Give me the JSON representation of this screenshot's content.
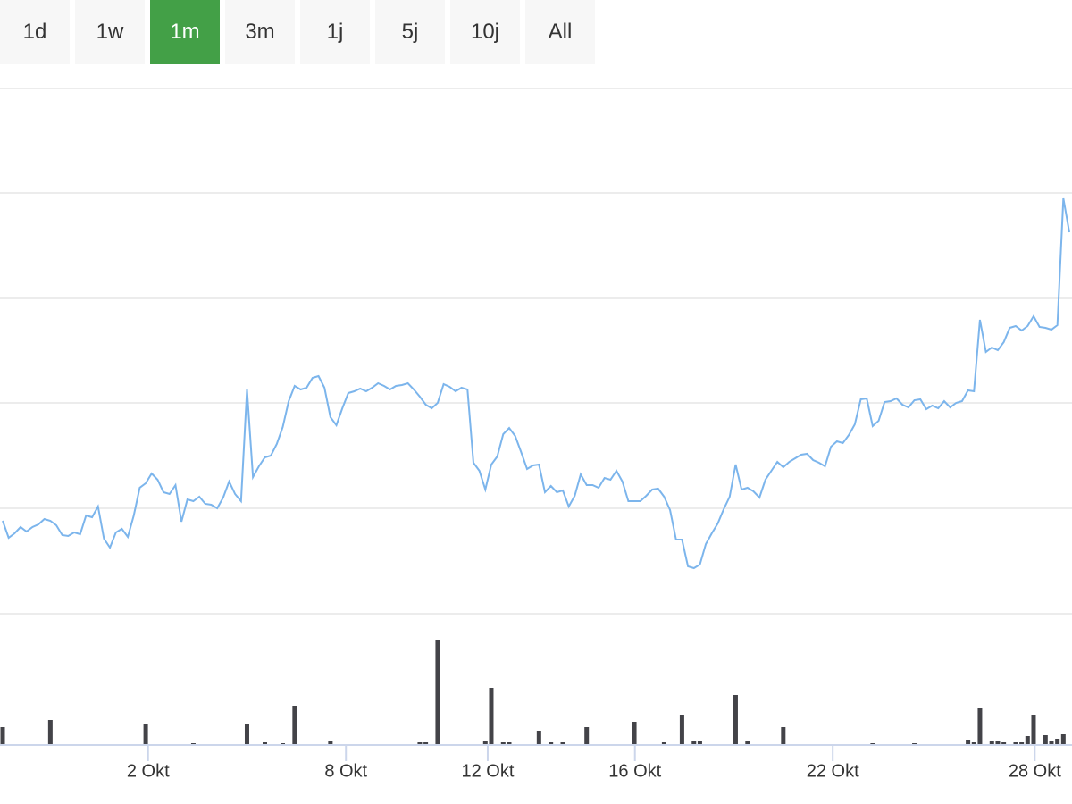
{
  "range_buttons": {
    "labels": [
      "1d",
      "1w",
      "1m",
      "3m",
      "1j",
      "5j",
      "10j",
      "All"
    ],
    "selected": 2
  },
  "chart_data": [
    {
      "type": "line",
      "color": "#7cb5ec",
      "grid": true,
      "xlim": [
        0,
        179
      ],
      "ylim": [
        0,
        588
      ],
      "gridlines": [
        0,
        118,
        236,
        353,
        471,
        588
      ],
      "values": [
        104,
        85,
        90,
        97,
        92,
        97,
        100,
        106,
        104,
        99,
        88,
        87,
        91,
        89,
        110,
        108,
        120,
        84,
        74,
        91,
        95,
        86,
        110,
        141,
        146,
        157,
        150,
        136,
        134,
        144,
        103,
        128,
        126,
        131,
        123,
        122,
        118,
        130,
        148,
        134,
        126,
        251,
        153,
        165,
        175,
        177,
        190,
        209,
        238,
        255,
        251,
        253,
        264,
        266,
        253,
        220,
        211,
        230,
        247,
        249,
        252,
        249,
        253,
        258,
        255,
        251,
        255,
        256,
        258,
        251,
        243,
        234,
        230,
        236,
        257,
        254,
        249,
        253,
        251,
        169,
        160,
        139,
        167,
        176,
        201,
        208,
        199,
        181,
        162,
        166,
        167,
        136,
        143,
        136,
        138,
        120,
        132,
        156,
        144,
        144,
        141,
        152,
        150,
        160,
        148,
        126,
        126,
        126,
        132,
        139,
        140,
        131,
        116,
        83,
        83,
        53,
        51,
        55,
        78,
        90,
        101,
        117,
        131,
        167,
        139,
        141,
        137,
        130,
        150,
        160,
        170,
        164,
        170,
        174,
        178,
        179,
        172,
        169,
        165,
        187,
        193,
        191,
        200,
        212,
        240,
        241,
        210,
        216,
        237,
        238,
        241,
        234,
        231,
        239,
        240,
        229,
        233,
        230,
        238,
        231,
        236,
        238,
        250,
        249,
        329,
        293,
        298,
        295,
        304,
        320,
        322,
        317,
        322,
        333,
        321,
        320,
        318,
        323,
        465,
        427
      ]
    },
    {
      "type": "bar",
      "color": "#434348",
      "xlim": [
        0,
        179
      ],
      "ylim": [
        0,
        147
      ],
      "x": [
        0,
        8,
        24,
        32,
        41,
        44,
        47,
        49,
        55,
        70,
        71,
        73,
        81,
        82,
        84,
        85,
        90,
        92,
        94,
        98,
        106,
        111,
        114,
        116,
        117,
        123,
        125,
        131,
        146,
        153,
        162,
        163,
        164,
        166,
        167,
        168,
        170,
        171,
        172,
        173,
        175,
        176,
        177,
        178
      ],
      "values": [
        20,
        28,
        24,
        2,
        24,
        3,
        2,
        44,
        5,
        3,
        3,
        118,
        5,
        64,
        3,
        3,
        16,
        3,
        3,
        20,
        26,
        3,
        34,
        4,
        5,
        56,
        5,
        20,
        2,
        2,
        6,
        3,
        42,
        4,
        5,
        3,
        3,
        3,
        10,
        34,
        11,
        5,
        7,
        12
      ],
      "xticks": [
        {
          "value": 24.4,
          "label": "2 Okt"
        },
        {
          "value": 57.6,
          "label": "8 Okt"
        },
        {
          "value": 81.4,
          "label": "12 Okt"
        },
        {
          "value": 106.1,
          "label": "16 Okt"
        },
        {
          "value": 139.3,
          "label": "22 Okt"
        },
        {
          "value": 173.2,
          "label": "28 Okt"
        }
      ]
    }
  ]
}
